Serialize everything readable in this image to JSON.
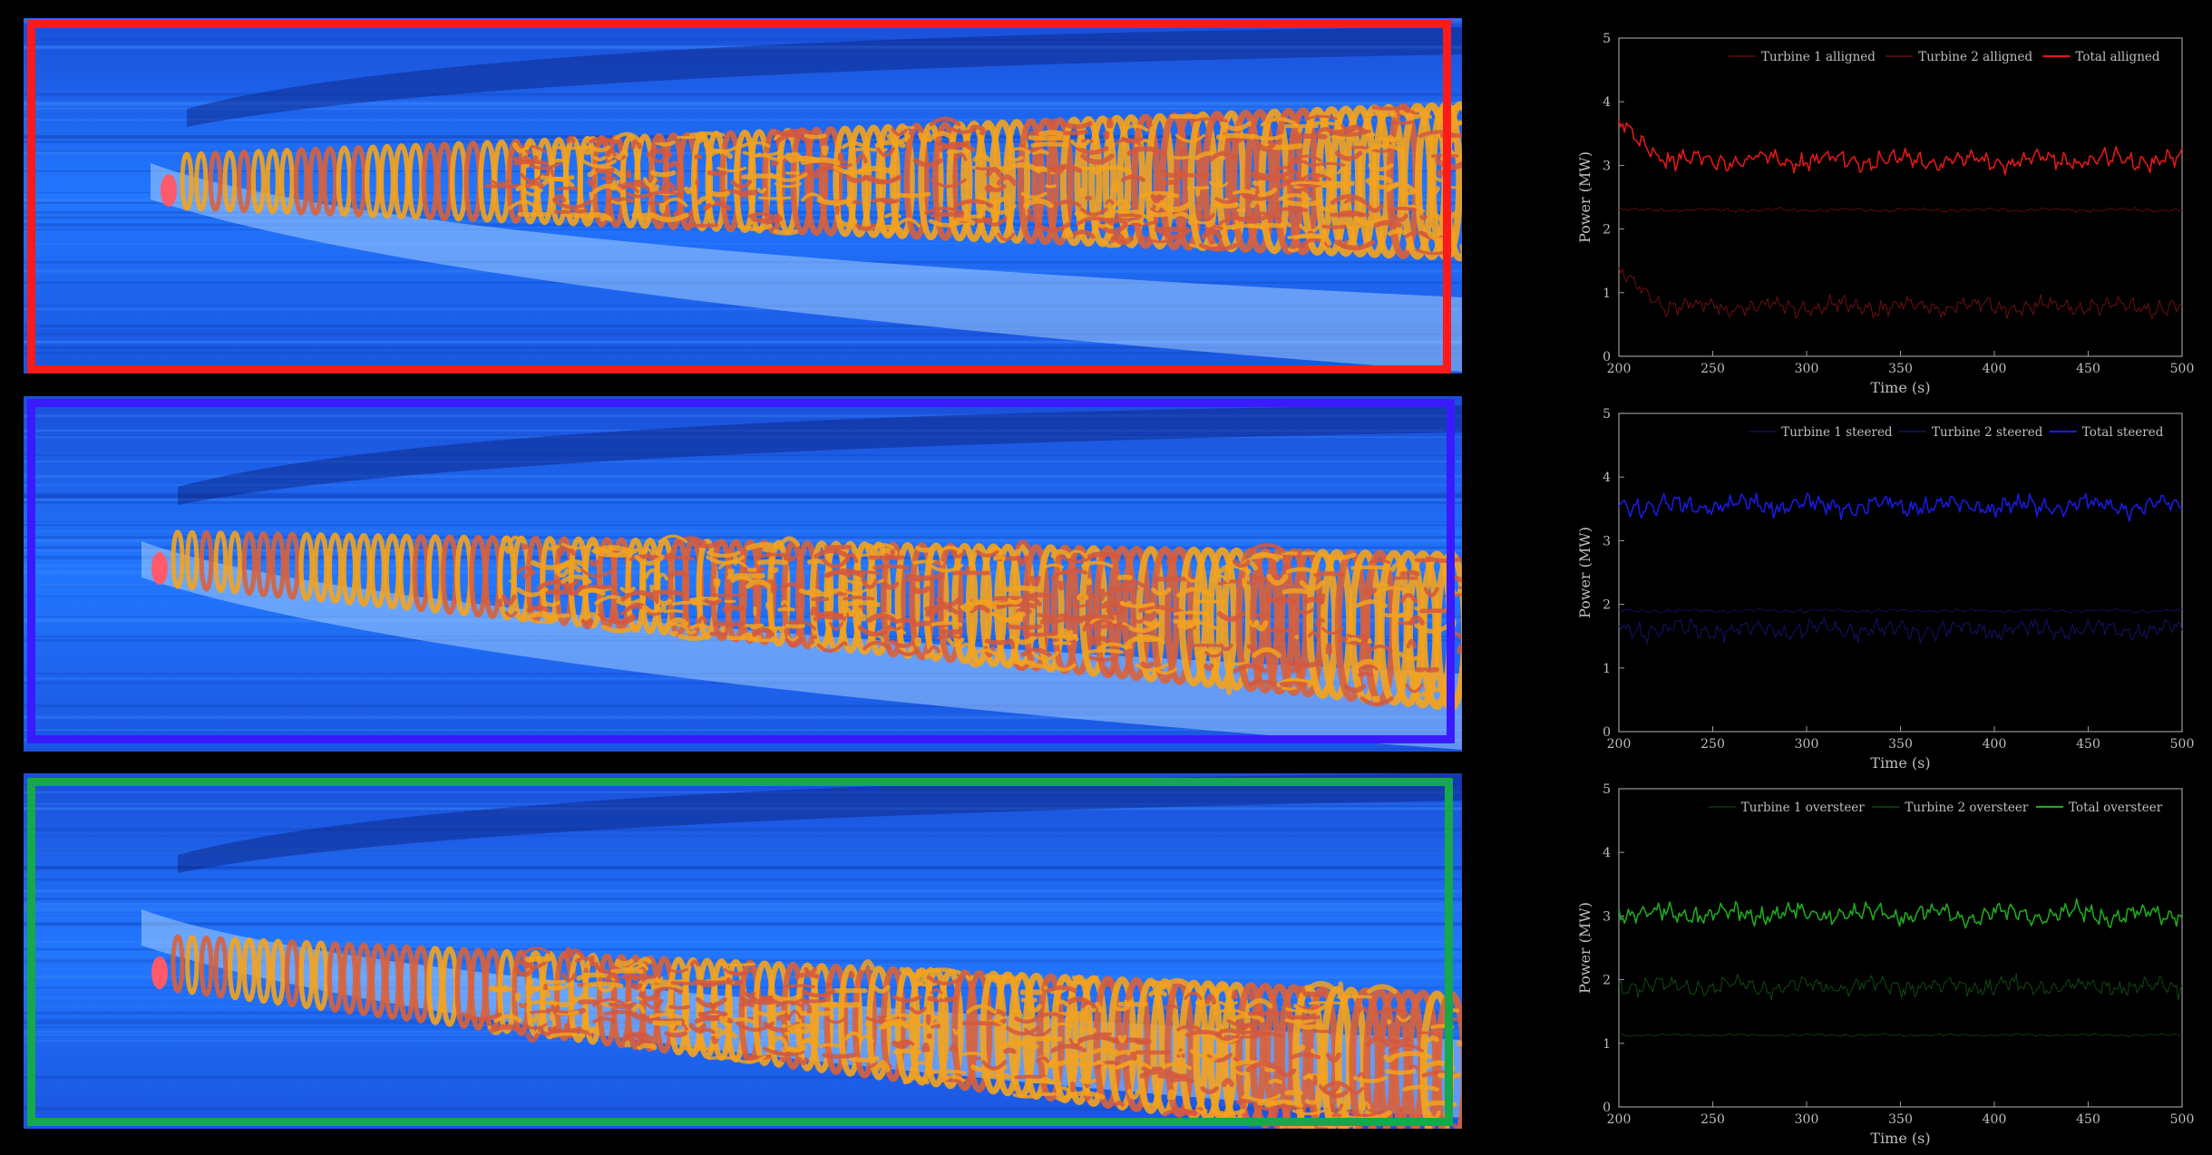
{
  "colors": {
    "aligned": "#e01818",
    "steered": "#1a1ae0",
    "oversteer": "#1fa81f",
    "flow_bg": "#1a6dff",
    "vortex": "#f29a1c"
  },
  "chart_data": [
    {
      "type": "line",
      "xlabel": "Time (s)",
      "ylabel": "Power (MW)",
      "xlim": [
        200,
        500
      ],
      "ylim": [
        0,
        5
      ],
      "xticks": [
        "200",
        "250",
        "300",
        "350",
        "400",
        "450",
        "500"
      ],
      "yticks": [
        "0",
        "1",
        "2",
        "3",
        "4",
        "5"
      ],
      "legend_position": "top-right",
      "series": [
        {
          "name": "Turbine 1 alligned",
          "mean": 2.3,
          "amp": 0.03,
          "start_peak": 0.0,
          "color": "#5a0c0c",
          "width": 1
        },
        {
          "name": "Turbine 2 alligned",
          "mean": 0.78,
          "amp": 0.14,
          "start_peak": 0.5,
          "color": "#6e1010",
          "width": 1
        },
        {
          "name": "Total alligned",
          "mean": 3.08,
          "amp": 0.15,
          "start_peak": 0.55,
          "color": "#e01818",
          "width": 1.6
        }
      ]
    },
    {
      "type": "line",
      "xlabel": "Time (s)",
      "ylabel": "Power (MW)",
      "xlim": [
        200,
        500
      ],
      "ylim": [
        0,
        5
      ],
      "xticks": [
        "200",
        "250",
        "300",
        "350",
        "400",
        "450",
        "500"
      ],
      "yticks": [
        "0",
        "1",
        "2",
        "3",
        "4",
        "5"
      ],
      "legend_position": "top-right",
      "series": [
        {
          "name": "Turbine 1 steered",
          "mean": 1.9,
          "amp": 0.03,
          "start_peak": 0.0,
          "color": "#101055",
          "width": 1
        },
        {
          "name": "Turbine 2 steered",
          "mean": 1.6,
          "amp": 0.15,
          "start_peak": 0.0,
          "color": "#13136a",
          "width": 1
        },
        {
          "name": "Total steered",
          "mean": 3.55,
          "amp": 0.16,
          "start_peak": 0.0,
          "color": "#1a1ae0",
          "width": 1.6
        }
      ]
    },
    {
      "type": "line",
      "xlabel": "Time (s)",
      "ylabel": "Power (MW)",
      "xlim": [
        200,
        500
      ],
      "ylim": [
        0,
        5
      ],
      "xticks": [
        "200",
        "250",
        "300",
        "350",
        "400",
        "450",
        "500"
      ],
      "yticks": [
        "0",
        "1",
        "2",
        "3",
        "4",
        "5"
      ],
      "legend_position": "top-right",
      "series": [
        {
          "name": "Turbine 1 oversteer",
          "mean": 1.13,
          "amp": 0.02,
          "start_peak": 0.0,
          "color": "#0c3a0c",
          "width": 1
        },
        {
          "name": "Turbine 2 oversteer",
          "mean": 1.9,
          "amp": 0.15,
          "start_peak": 0.0,
          "color": "#104a10",
          "width": 1
        },
        {
          "name": "Total oversteer",
          "mean": 3.03,
          "amp": 0.16,
          "start_peak": 0.0,
          "color": "#1fa81f",
          "width": 1.6
        }
      ]
    }
  ]
}
